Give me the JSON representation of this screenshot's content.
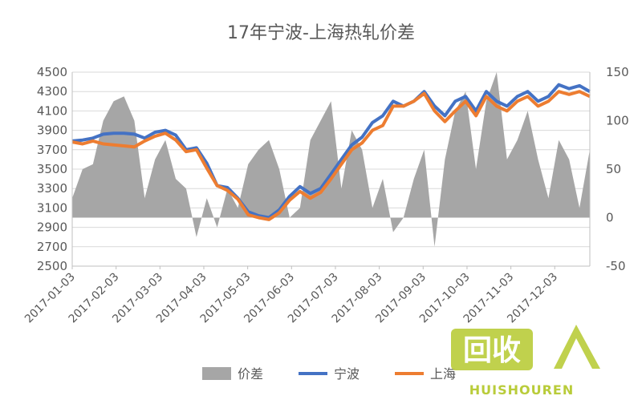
{
  "chart_data": {
    "type": "line",
    "title": "17年宁波-上海热轧价差",
    "x_ticks": [
      "2017-01-03",
      "2017-02-03",
      "2017-03-03",
      "2017-04-03",
      "2017-05-03",
      "2017-06-03",
      "2017-07-03",
      "2017-08-03",
      "2017-09-03",
      "2017-10-03",
      "2017-11-03",
      "2017-12-03"
    ],
    "left_axis": {
      "ylim": [
        2500,
        4500
      ],
      "ticks": [
        2500,
        2700,
        2900,
        3100,
        3300,
        3500,
        3700,
        3900,
        4100,
        4300,
        4500
      ]
    },
    "right_axis": {
      "ylim": [
        -50,
        150
      ],
      "ticks": [
        -50,
        0,
        50,
        100,
        150
      ]
    },
    "series": [
      {
        "name": "价差",
        "kind": "area",
        "axis": "right",
        "color": "#a6a6a6",
        "values": [
          20,
          50,
          55,
          100,
          120,
          125,
          100,
          20,
          60,
          80,
          40,
          30,
          -20,
          20,
          -10,
          30,
          10,
          55,
          70,
          80,
          50,
          0,
          10,
          80,
          100,
          120,
          30,
          90,
          70,
          10,
          40,
          -15,
          0,
          40,
          70,
          -30,
          60,
          110,
          130,
          50,
          120,
          150,
          60,
          80,
          110,
          60,
          20,
          80,
          60,
          10,
          70
        ]
      },
      {
        "name": "宁波",
        "kind": "line",
        "axis": "left",
        "color": "#4472c4",
        "values": [
          3790,
          3800,
          3820,
          3860,
          3870,
          3870,
          3860,
          3820,
          3880,
          3900,
          3850,
          3700,
          3720,
          3560,
          3330,
          3310,
          3200,
          3060,
          3020,
          3000,
          3080,
          3220,
          3320,
          3250,
          3300,
          3450,
          3600,
          3750,
          3830,
          3980,
          4050,
          4200,
          4150,
          4200,
          4300,
          4150,
          4050,
          4200,
          4250,
          4100,
          4300,
          4200,
          4150,
          4250,
          4300,
          4200,
          4250,
          4370,
          4330,
          4360,
          4300
        ]
      },
      {
        "name": "上海",
        "kind": "line",
        "axis": "left",
        "color": "#ed7d31",
        "values": [
          3780,
          3760,
          3790,
          3760,
          3750,
          3740,
          3730,
          3790,
          3840,
          3870,
          3800,
          3680,
          3700,
          3510,
          3330,
          3280,
          3190,
          3030,
          3000,
          2980,
          3050,
          3180,
          3270,
          3200,
          3260,
          3400,
          3550,
          3700,
          3770,
          3900,
          3950,
          4150,
          4150,
          4200,
          4280,
          4100,
          3990,
          4100,
          4200,
          4050,
          4250,
          4150,
          4100,
          4200,
          4250,
          4150,
          4200,
          4300,
          4270,
          4300,
          4250
        ]
      }
    ],
    "legend_position": "bottom",
    "grid": true
  },
  "watermark": {
    "text": "回收",
    "subtext": "HUISHOUREN"
  },
  "colors": {
    "axis": "#bfbfbf",
    "grid": "#d9d9d9",
    "text": "#595959",
    "watermark": "#b9cc3a"
  }
}
